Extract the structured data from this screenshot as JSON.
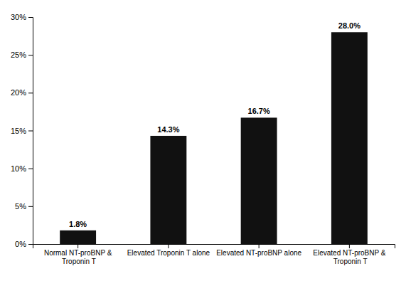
{
  "chart_data": {
    "type": "bar",
    "categories": [
      "Normal NT-proBNP & Troponin T",
      "Elevated Troponin T alone",
      "Elevated NT-proBNP alone",
      "Elevated NT-proBNP & Troponin T"
    ],
    "values": [
      1.8,
      14.3,
      16.7,
      28.0
    ],
    "value_labels": [
      "1.8%",
      "14.3%",
      "16.7%",
      "28.0%"
    ],
    "data_labels": true,
    "color": "#111111",
    "ylim": [
      0,
      30
    ],
    "yticks": [
      {
        "value": 0,
        "label": "0%"
      },
      {
        "value": 5,
        "label": "5%"
      },
      {
        "value": 10,
        "label": "10%"
      },
      {
        "value": 15,
        "label": "15%"
      },
      {
        "value": 20,
        "label": "20%"
      },
      {
        "value": 25,
        "label": "25%"
      },
      {
        "value": 30,
        "label": "30%"
      }
    ],
    "grid": false
  }
}
